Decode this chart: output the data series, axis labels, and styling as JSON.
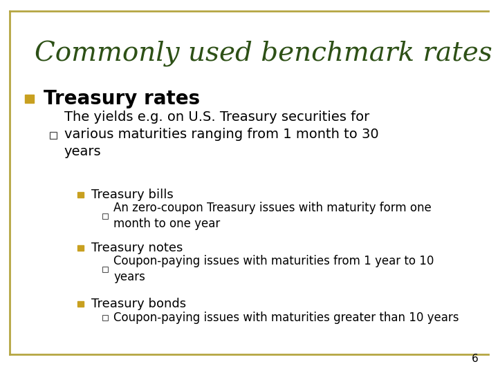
{
  "title": "Commonly used benchmark rates",
  "title_color": "#2D5016",
  "title_fontsize": 28,
  "background_color": "#FFFFFF",
  "border_color": "#B5A642",
  "page_number": "6",
  "level1_marker_color": "#C8A020",
  "level1_text": "Treasury rates",
  "level1_fontsize": 20,
  "level2_text": "The yields e.g. on U.S. Treasury securities for\nvarious maturities ranging from 1 month to 30\nyears",
  "level2_fontsize": 14,
  "level3_items": [
    {
      "text": "Treasury bills",
      "fontsize": 13
    },
    {
      "text": "Treasury notes",
      "fontsize": 13
    },
    {
      "text": "Treasury bonds",
      "fontsize": 13
    }
  ],
  "level4_items": [
    {
      "text": "An zero-coupon Treasury issues with maturity form one\nmonth to one year",
      "fontsize": 12
    },
    {
      "text": "Coupon-paying issues with maturities from 1 year to 10\nyears",
      "fontsize": 12
    },
    {
      "text": "Coupon-paying issues with maturities greater than 10 years",
      "fontsize": 12
    }
  ],
  "level3_marker_color": "#C8A020",
  "level4_marker_color": "#555555"
}
